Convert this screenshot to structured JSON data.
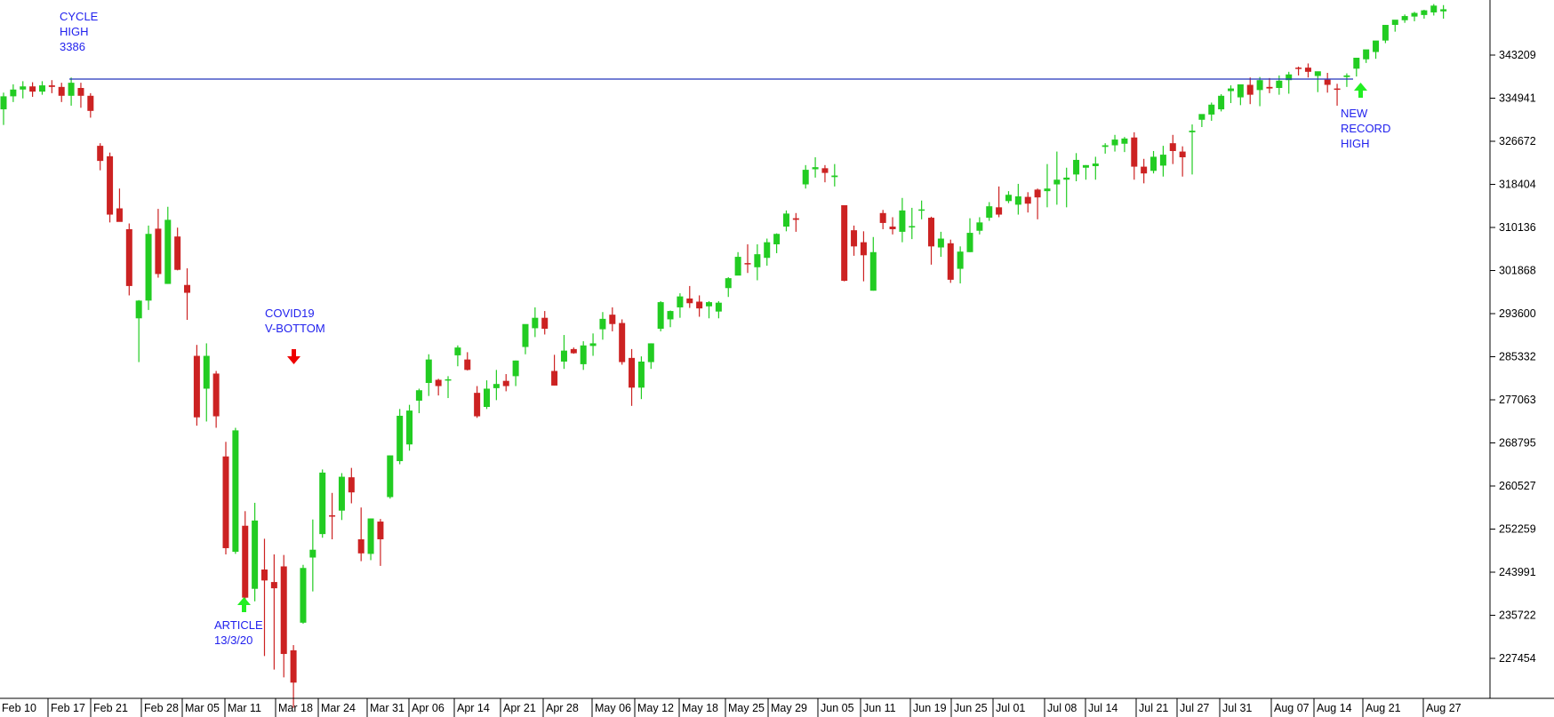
{
  "chart_data": {
    "type": "candlestick",
    "title": "",
    "xlabel": "",
    "ylabel": "",
    "grid": false,
    "y_axis_position": "right",
    "yticks": [
      227454,
      235722,
      243991,
      252259,
      260527,
      268795,
      277063,
      285332,
      293600,
      301868,
      310136,
      318404,
      326672,
      334941,
      343209
    ],
    "ylim": [
      220000,
      350500
    ],
    "xticks": [
      "Feb 10",
      "Feb 17",
      "Feb 21",
      "Feb 28",
      "Mar 05",
      "Mar 11",
      "Mar 18",
      "Mar 24",
      "Mar 31",
      "Apr 06",
      "Apr 14",
      "Apr 21",
      "Apr 28",
      "May 06",
      "May 12",
      "May 18",
      "May 25",
      "May 29",
      "Jun 05",
      "Jun 11",
      "Jun 19",
      "Jun 25",
      "Jul 01",
      "Jul 08",
      "Jul 14",
      "Jul 21",
      "Jul 27",
      "Jul 31",
      "Aug 07",
      "Aug 14",
      "Aug 21",
      "Aug 27"
    ],
    "colors": {
      "up": "#22cc22",
      "down": "#cc2222",
      "hline": "#2233bb",
      "annotation": "#2222ee",
      "arrow_red": "#ee0000",
      "arrow_green": "#22ee22"
    },
    "candles": [
      [
        332800,
        336000,
        329800,
        335300
      ],
      [
        335300,
        337600,
        334200,
        336600
      ],
      [
        336600,
        338200,
        334900,
        337200
      ],
      [
        337200,
        338000,
        335200,
        336200
      ],
      [
        336200,
        338200,
        335600,
        337400
      ],
      [
        337400,
        338400,
        335900,
        337100
      ],
      [
        337100,
        337900,
        334200,
        335400
      ],
      [
        335400,
        338900,
        333500,
        337900
      ],
      [
        336900,
        337900,
        333100,
        335400
      ],
      [
        335400,
        335900,
        331200,
        332500
      ],
      [
        325800,
        326300,
        321100,
        322900
      ],
      [
        323800,
        324500,
        311100,
        312600
      ],
      [
        313800,
        317600,
        311300,
        311200
      ],
      [
        309800,
        310900,
        297100,
        298900
      ],
      [
        292700,
        296200,
        284300,
        296100
      ],
      [
        296100,
        310500,
        294300,
        308900
      ],
      [
        309900,
        313700,
        300500,
        301200
      ],
      [
        299300,
        314100,
        299300,
        311600
      ],
      [
        308400,
        310100,
        301900,
        302000
      ],
      [
        299100,
        302300,
        292400,
        297600
      ],
      [
        285500,
        287600,
        272100,
        273700
      ],
      [
        279200,
        287900,
        272900,
        285500
      ],
      [
        282100,
        282600,
        271700,
        273900
      ],
      [
        266200,
        269000,
        247400,
        248600
      ],
      [
        247900,
        271700,
        247500,
        271200
      ],
      [
        252900,
        255700,
        237100,
        239100
      ],
      [
        240800,
        257300,
        238400,
        253900
      ],
      [
        244500,
        250400,
        227900,
        242400
      ],
      [
        242100,
        247400,
        225300,
        240900
      ],
      [
        245100,
        247300,
        223800,
        228300
      ],
      [
        229000,
        230000,
        218000,
        222800
      ],
      [
        234300,
        245400,
        234100,
        244800
      ],
      [
        246800,
        254100,
        240300,
        248300
      ],
      [
        251300,
        263700,
        250600,
        263100
      ],
      [
        254900,
        259200,
        250300,
        254800
      ],
      [
        255800,
        263000,
        254000,
        262300
      ],
      [
        262200,
        264000,
        257200,
        259300
      ],
      [
        250300,
        256400,
        246100,
        247600
      ],
      [
        247500,
        254300,
        246300,
        254300
      ],
      [
        253700,
        254200,
        245200,
        250300
      ],
      [
        258400,
        266400,
        258100,
        266400
      ],
      [
        265300,
        275300,
        264700,
        274000
      ],
      [
        268500,
        276100,
        267300,
        275000
      ],
      [
        276900,
        279200,
        274500,
        278900
      ],
      [
        280300,
        285800,
        277800,
        284800
      ],
      [
        280900,
        281100,
        277900,
        279700
      ],
      [
        281000,
        281600,
        277400,
        281000
      ],
      [
        285600,
        287500,
        283500,
        287100
      ],
      [
        284800,
        286200,
        282700,
        282800
      ],
      [
        278400,
        279700,
        273600,
        273900
      ],
      [
        275700,
        280800,
        275300,
        279200
      ],
      [
        279300,
        282800,
        277000,
        280100
      ],
      [
        280700,
        282000,
        278700,
        279700
      ],
      [
        281600,
        284600,
        279700,
        284600
      ],
      [
        287200,
        290400,
        285800,
        291600
      ],
      [
        290800,
        294800,
        289100,
        292800
      ],
      [
        292800,
        294100,
        289600,
        290700
      ],
      [
        282600,
        285700,
        279800,
        279800
      ],
      [
        284400,
        289500,
        283000,
        286500
      ],
      [
        286800,
        287100,
        285900,
        286000
      ],
      [
        283900,
        288300,
        282800,
        287500
      ],
      [
        287400,
        289800,
        285500,
        287900
      ],
      [
        290600,
        293900,
        288600,
        292600
      ],
      [
        293400,
        294800,
        290200,
        291600
      ],
      [
        291800,
        292500,
        283800,
        284300
      ],
      [
        285100,
        286800,
        275900,
        279400
      ],
      [
        279400,
        285400,
        277200,
        284400
      ],
      [
        284300,
        287900,
        283000,
        287900
      ],
      [
        290700,
        296000,
        290200,
        295800
      ],
      [
        292500,
        294200,
        291000,
        294100
      ],
      [
        294800,
        297500,
        292800,
        296900
      ],
      [
        296500,
        298900,
        294700,
        295600
      ],
      [
        295900,
        297100,
        293000,
        294600
      ],
      [
        295000,
        296000,
        292700,
        295800
      ],
      [
        294000,
        296000,
        292700,
        295700
      ],
      [
        298500,
        300600,
        296800,
        300400
      ],
      [
        300900,
        305400,
        301700,
        304500
      ],
      [
        303300,
        306900,
        301400,
        303100
      ],
      [
        302500,
        306900,
        300000,
        305000
      ],
      [
        304300,
        308000,
        302800,
        307300
      ],
      [
        306900,
        309000,
        305200,
        308900
      ],
      [
        310300,
        313400,
        309400,
        312800
      ],
      [
        311900,
        312900,
        309300,
        311600
      ],
      [
        318400,
        322100,
        317600,
        321200
      ],
      [
        321300,
        323600,
        319700,
        321700
      ],
      [
        321500,
        322100,
        318800,
        320600
      ],
      [
        319800,
        322300,
        318000,
        320100
      ],
      [
        314400,
        314400,
        299800,
        299900
      ],
      [
        309600,
        310500,
        304700,
        306500
      ],
      [
        307300,
        309400,
        299800,
        304800
      ],
      [
        298000,
        308300,
        298000,
        305400
      ],
      [
        312900,
        313500,
        309800,
        311000
      ],
      [
        310300,
        312100,
        308800,
        309800
      ],
      [
        309300,
        315800,
        307300,
        313400
      ],
      [
        310300,
        313900,
        307900,
        310400
      ],
      [
        313500,
        315300,
        311700,
        313600
      ],
      [
        312000,
        312200,
        303000,
        306500
      ],
      [
        306300,
        309300,
        304500,
        308000
      ],
      [
        307100,
        307800,
        299500,
        300100
      ],
      [
        302200,
        306500,
        299400,
        305500
      ],
      [
        305400,
        311900,
        305400,
        309100
      ],
      [
        309500,
        312100,
        308800,
        311100
      ],
      [
        312000,
        315000,
        311400,
        314200
      ],
      [
        314000,
        318000,
        312100,
        312600
      ],
      [
        315200,
        317100,
        314800,
        316400
      ],
      [
        314500,
        318500,
        312600,
        316100
      ],
      [
        316000,
        316900,
        313000,
        314700
      ],
      [
        317400,
        317600,
        311700,
        315900
      ],
      [
        317100,
        322300,
        314000,
        317600
      ],
      [
        318400,
        324700,
        314500,
        319300
      ],
      [
        319300,
        321600,
        314000,
        319700
      ],
      [
        320300,
        324400,
        319000,
        323100
      ],
      [
        321600,
        322100,
        319300,
        322100
      ],
      [
        321900,
        323700,
        319300,
        322400
      ],
      [
        325600,
        326300,
        324300,
        325900
      ],
      [
        325900,
        327900,
        324700,
        327000
      ],
      [
        326200,
        327500,
        324600,
        327200
      ],
      [
        327400,
        328400,
        319300,
        321800
      ],
      [
        321800,
        323300,
        318600,
        320500
      ],
      [
        321000,
        324800,
        320500,
        323700
      ],
      [
        322000,
        325800,
        319900,
        324100
      ],
      [
        326300,
        327900,
        322300,
        324800
      ],
      [
        324700,
        325700,
        319900,
        323600
      ],
      [
        328400,
        329900,
        320300,
        328700
      ],
      [
        330800,
        331700,
        329400,
        331900
      ],
      [
        331800,
        334100,
        330600,
        333700
      ],
      [
        332800,
        335700,
        332400,
        335400
      ],
      [
        336300,
        337400,
        334000,
        336800
      ],
      [
        335100,
        336800,
        333600,
        337600
      ],
      [
        337500,
        338900,
        333800,
        335600
      ],
      [
        336500,
        339000,
        333400,
        338400
      ],
      [
        337100,
        338800,
        335900,
        336800
      ],
      [
        336900,
        339300,
        335600,
        338300
      ],
      [
        338400,
        340000,
        335800,
        339500
      ],
      [
        340800,
        341000,
        339300,
        340700
      ],
      [
        340800,
        341600,
        338900,
        340000
      ],
      [
        339200,
        340000,
        336100,
        340100
      ],
      [
        338500,
        339800,
        336000,
        337500
      ],
      [
        336800,
        337700,
        333500,
        336700
      ],
      [
        339000,
        339700,
        337100,
        339300
      ],
      [
        340600,
        342300,
        339100,
        342700
      ],
      [
        342400,
        344200,
        341700,
        344300
      ],
      [
        343800,
        345800,
        342500,
        346000
      ],
      [
        346000,
        349000,
        345500,
        349000
      ],
      [
        349000,
        349900,
        347700,
        350000
      ],
      [
        349900,
        351000,
        349400,
        350700
      ],
      [
        350600,
        351500,
        349700,
        351300
      ],
      [
        350900,
        351900,
        350200,
        351800
      ],
      [
        351400,
        353000,
        350800,
        352700
      ],
      [
        351600,
        352800,
        350200,
        352000
      ]
    ],
    "horizontal_line": {
      "value": 338600,
      "label": "CYCLE HIGH 3386"
    },
    "annotations": [
      {
        "lines": [
          "CYCLE",
          "HIGH",
          "3386"
        ]
      },
      {
        "lines": [
          "COVID19",
          "V-BOTTOM"
        ]
      },
      {
        "lines": [
          "ARTICLE",
          "13/3/20"
        ]
      },
      {
        "lines": [
          "NEW",
          "RECORD",
          "HIGH"
        ]
      }
    ]
  }
}
